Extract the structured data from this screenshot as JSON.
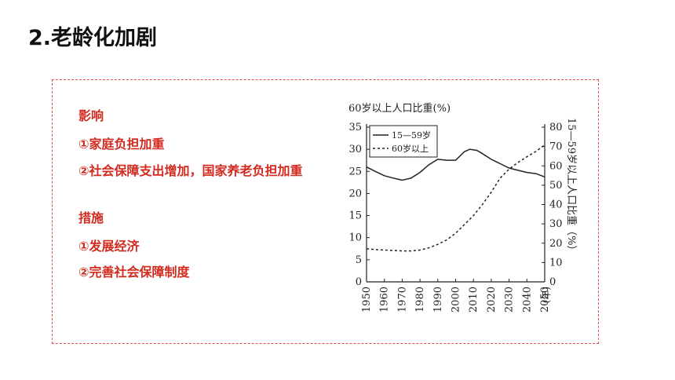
{
  "header": {
    "title": "2.老龄化加剧"
  },
  "influence": {
    "heading": "影响",
    "items": [
      "①家庭负担加重",
      "②社会保障支出增加，国家养老负担加重"
    ]
  },
  "measures": {
    "heading": "措施",
    "items": [
      "①发展经济",
      "②完善社会保障制度"
    ]
  },
  "colors": {
    "title_text": "#111111",
    "accent_red": "#d12a1e",
    "border_dash": "#e0504a"
  },
  "chart_data": {
    "type": "line",
    "title": "60岁以上人口比重(%)",
    "x_unit": "(年)",
    "y2label": "15—59岁以上人口比重（%）",
    "x": [
      1950,
      1960,
      1970,
      1980,
      1990,
      2000,
      2010,
      2020,
      2030,
      2040,
      2050
    ],
    "x_ticks": [
      "1950",
      "1960",
      "1970",
      "1980",
      "1990",
      "2000",
      "2010",
      "2020",
      "2030",
      "2040",
      "2050"
    ],
    "ylim": [
      0,
      35
    ],
    "y_ticks": [
      "0",
      "5",
      "10",
      "15",
      "20",
      "25",
      "30",
      "35"
    ],
    "y2lim": [
      0,
      80
    ],
    "y2_ticks": [
      "0",
      "10",
      "20",
      "30",
      "40",
      "50",
      "60",
      "70",
      "80"
    ],
    "legend_position": "top-left",
    "series": [
      {
        "name": "15—59岁",
        "axis": "right",
        "style": "solid",
        "x": [
          1950,
          1955,
          1960,
          1965,
          1970,
          1975,
          1980,
          1985,
          1990,
          1995,
          2000,
          2005,
          2008,
          2012,
          2015,
          2020,
          2025,
          2030,
          2035,
          2040,
          2045,
          2050
        ],
        "values": [
          59.4,
          57.1,
          54.9,
          53.7,
          52.6,
          53.7,
          56.6,
          60.6,
          63.4,
          62.9,
          62.9,
          67.4,
          68.6,
          68.0,
          66.3,
          63.4,
          61.1,
          58.9,
          57.7,
          56.6,
          56.0,
          54.3
        ]
      },
      {
        "name": "60岁以上",
        "axis": "left",
        "style": "dashed",
        "x": [
          1950,
          1955,
          1960,
          1965,
          1970,
          1975,
          1980,
          1985,
          1990,
          1995,
          2000,
          2005,
          2010,
          2015,
          2020,
          2025,
          2030,
          2035,
          2040,
          2045,
          2050
        ],
        "values": [
          7.5,
          7.3,
          7.2,
          7.1,
          7.0,
          7.0,
          7.2,
          7.7,
          8.5,
          9.5,
          11.0,
          13.0,
          15.0,
          17.5,
          20.3,
          23.5,
          25.5,
          27.0,
          28.3,
          29.5,
          31.0
        ]
      }
    ]
  }
}
